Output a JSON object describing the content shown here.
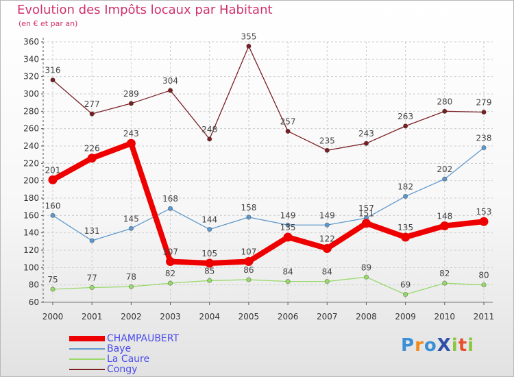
{
  "header": {
    "title": "Evolution des Impôts locaux par Habitant",
    "subtitle": "(en € et par an)"
  },
  "logo": {
    "text": "ProXiti"
  },
  "chart_data": {
    "type": "line",
    "title": "Evolution des Impôts locaux par Habitant",
    "subtitle": "(en € et par an)",
    "xlabel": "",
    "ylabel": "",
    "categories": [
      "2000",
      "2001",
      "2002",
      "2003",
      "2004",
      "2005",
      "2006",
      "2007",
      "2008",
      "2009",
      "2010",
      "2011"
    ],
    "ylim": [
      60,
      360
    ],
    "yticks": [
      60,
      80,
      100,
      120,
      140,
      160,
      180,
      200,
      220,
      240,
      260,
      280,
      300,
      320,
      340,
      360
    ],
    "grid": true,
    "legend": "bottom-left",
    "series": [
      {
        "name": "CHAMPAUBERT",
        "color": "#ee0000",
        "values": [
          201,
          226,
          243,
          107,
          105,
          107,
          135,
          122,
          151,
          135,
          148,
          153
        ]
      },
      {
        "name": "Baye",
        "color": "#5f98cc",
        "values": [
          160,
          131,
          145,
          168,
          144,
          158,
          149,
          149,
          157,
          182,
          202,
          238
        ]
      },
      {
        "name": "La Caure",
        "color": "#99d96b",
        "values": [
          75,
          77,
          78,
          82,
          85,
          86,
          84,
          84,
          89,
          69,
          82,
          80
        ]
      },
      {
        "name": "Congy",
        "color": "#7a1f23",
        "values": [
          316,
          277,
          289,
          304,
          248,
          355,
          257,
          235,
          243,
          263,
          280,
          279
        ]
      }
    ]
  }
}
